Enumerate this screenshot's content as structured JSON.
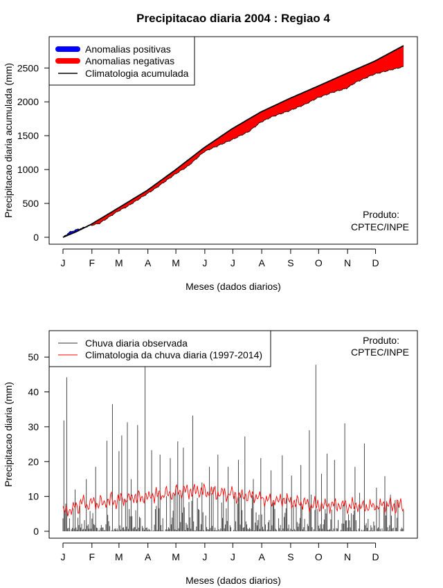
{
  "title": "Precipitacao diaria 2004 : Regiao 4",
  "chart_data": [
    {
      "type": "area",
      "ylabel": "Precipitacao diaria acumulada (mm)",
      "xlabel": "Meses (dados diarios)",
      "x_tick_labels": [
        "J",
        "F",
        "M",
        "A",
        "M",
        "J",
        "J",
        "A",
        "S",
        "O",
        "N",
        "D"
      ],
      "xlim_days": [
        1,
        366
      ],
      "ylim": [
        0,
        2850
      ],
      "y_ticks": [
        0,
        500,
        1000,
        1500,
        2000,
        2500
      ],
      "legend": {
        "position": "top-left",
        "entries": [
          "Anomalias positivas",
          "Anomalias negativas",
          "Climatologia acumulada"
        ]
      },
      "annotation": [
        "Produto:",
        "CPTEC/INPE"
      ],
      "colors": {
        "positive": "#0000ff",
        "negative": "#ff0000",
        "line": "#000000"
      },
      "climatology_cumulative": {
        "day": [
          1,
          15,
          31,
          60,
          91,
          121,
          152,
          182,
          213,
          244,
          274,
          305,
          335,
          366
        ],
        "value": [
          0,
          80,
          190,
          430,
          690,
          990,
          1320,
          1600,
          1850,
          2050,
          2230,
          2420,
          2600,
          2830
        ]
      },
      "observed_cumulative": {
        "day": [
          1,
          8,
          15,
          20,
          31,
          40,
          60,
          70,
          91,
          100,
          121,
          135,
          152,
          160,
          182,
          200,
          213,
          225,
          244,
          260,
          274,
          290,
          305,
          315,
          335,
          366
        ],
        "value": [
          0,
          75,
          110,
          130,
          175,
          205,
          385,
          455,
          640,
          720,
          930,
          1050,
          1260,
          1310,
          1440,
          1560,
          1700,
          1780,
          1870,
          1960,
          2060,
          2140,
          2200,
          2290,
          2410,
          2520
        ]
      }
    },
    {
      "type": "line",
      "ylabel": "Precipitacao diaria (mm)",
      "xlabel": "Meses (dados diarios)",
      "x_tick_labels": [
        "J",
        "F",
        "M",
        "A",
        "M",
        "J",
        "J",
        "A",
        "S",
        "O",
        "N",
        "D"
      ],
      "xlim_days": [
        1,
        366
      ],
      "ylim": [
        0,
        55
      ],
      "y_ticks": [
        0,
        10,
        20,
        30,
        40,
        50
      ],
      "legend": {
        "position": "top-left",
        "entries": [
          "Chuva diaria observada",
          "Climatologia da chuva diaria (1997-2014)"
        ]
      },
      "annotation": [
        "Produto:",
        "CPTEC/INPE"
      ],
      "colors": {
        "observed": "#333333",
        "climatology": "#ff0000"
      },
      "observed_peaks": {
        "day": [
          2,
          5,
          14,
          26,
          36,
          48,
          54,
          61,
          64,
          70,
          74,
          81,
          89,
          96,
          105,
          116,
          124,
          130,
          140,
          150,
          158,
          167,
          178,
          189,
          196,
          205,
          213,
          224,
          236,
          246,
          256,
          265,
          272,
          278,
          284,
          292,
          303,
          314,
          324,
          337,
          346,
          352,
          360
        ],
        "value": [
          31.8,
          44.2,
          12,
          15,
          18.5,
          26,
          36.5,
          23,
          27.5,
          31.3,
          15,
          30.5,
          47.8,
          23.3,
          22,
          21,
          25.8,
          24,
          33.2,
          14,
          18.5,
          22,
          18.5,
          20.5,
          27.2,
          15,
          21,
          17.5,
          21.8,
          16,
          19,
          29,
          47.8,
          16.5,
          22.3,
          20.5,
          31,
          18.5,
          25.2,
          12.5,
          15.8,
          10.5,
          8.5
        ]
      },
      "climatology_daily": {
        "day": [
          1,
          15,
          31,
          45,
          60,
          75,
          91,
          105,
          121,
          135,
          152,
          166,
          182,
          196,
          213,
          227,
          244,
          258,
          274,
          288,
          305,
          319,
          335,
          350,
          366
        ],
        "value": [
          5,
          7.5,
          8,
          8.5,
          9,
          9.5,
          10,
          10.5,
          11,
          11.5,
          11.5,
          11,
          10.5,
          10,
          9.5,
          9,
          8.5,
          8,
          7.5,
          7.5,
          7.5,
          7,
          7,
          7.5,
          7.5
        ]
      }
    }
  ]
}
